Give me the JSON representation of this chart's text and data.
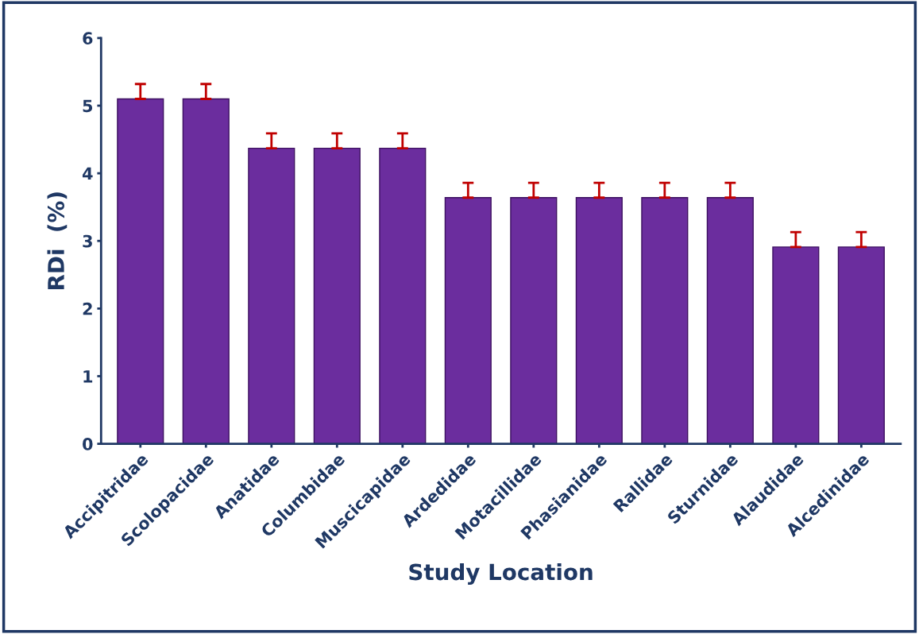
{
  "chart_data": {
    "type": "bar",
    "xlabel": "Study Location",
    "ylabel": "RDi  (%)",
    "categories": [
      "Accipitridae",
      "Scolopacidae",
      "Anatidae",
      "Columbidae",
      "Muscicapidae",
      "Ardedidae",
      "Motacillidae",
      "Phasianidae",
      "Rallidae",
      "Sturnidae",
      "Alaudidae",
      "Alcedinidae"
    ],
    "values": [
      5.1,
      5.1,
      4.37,
      4.37,
      4.37,
      3.64,
      3.64,
      3.64,
      3.64,
      3.64,
      2.91,
      2.91
    ],
    "errors": [
      [
        5.1,
        5.32
      ],
      [
        5.1,
        5.32
      ],
      [
        4.37,
        4.59
      ],
      [
        4.37,
        4.59
      ],
      [
        4.37,
        4.59
      ],
      [
        3.64,
        3.86
      ],
      [
        3.64,
        3.86
      ],
      [
        3.64,
        3.86
      ],
      [
        3.64,
        3.86
      ],
      [
        3.64,
        3.86
      ],
      [
        2.91,
        3.13
      ],
      [
        2.91,
        3.13
      ]
    ],
    "color": "#6b2d9e",
    "ylim": [
      0,
      6
    ],
    "yticks": [
      0,
      1,
      2,
      3,
      4,
      5,
      6
    ],
    "grid": false
  }
}
